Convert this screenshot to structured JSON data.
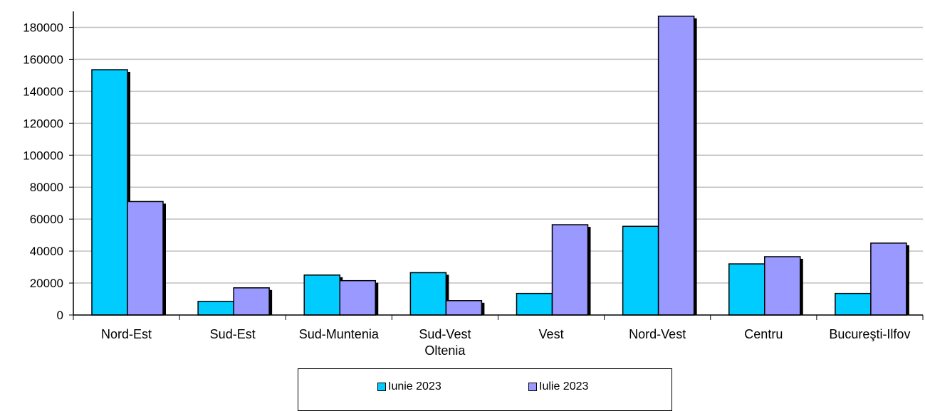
{
  "chart_data": {
    "type": "bar",
    "categories": [
      "Nord-Est",
      "Sud-Est",
      "Sud-Muntenia",
      "Sud-Vest\nOltenia",
      "Vest",
      "Nord-Vest",
      "Centru",
      "Bucureşti-Ilfov"
    ],
    "series": [
      {
        "name": "Iunie 2023",
        "color": "#00ccff",
        "values": [
          153500,
          8500,
          25000,
          26500,
          13500,
          55500,
          32000,
          13500
        ]
      },
      {
        "name": "Iulie 2023",
        "color": "#9999ff",
        "values": [
          71000,
          17000,
          21500,
          9000,
          56500,
          187000,
          36500,
          45000
        ]
      }
    ],
    "yticks": [
      0,
      20000,
      40000,
      60000,
      80000,
      100000,
      120000,
      140000,
      160000,
      180000
    ],
    "ylim": [
      0,
      190000
    ],
    "grid": true,
    "legend_position": "bottom"
  },
  "legend": {
    "items": [
      {
        "label": "Iunie 2023",
        "color": "#00ccff"
      },
      {
        "label": "Iulie 2023",
        "color": "#9999ff"
      }
    ]
  }
}
